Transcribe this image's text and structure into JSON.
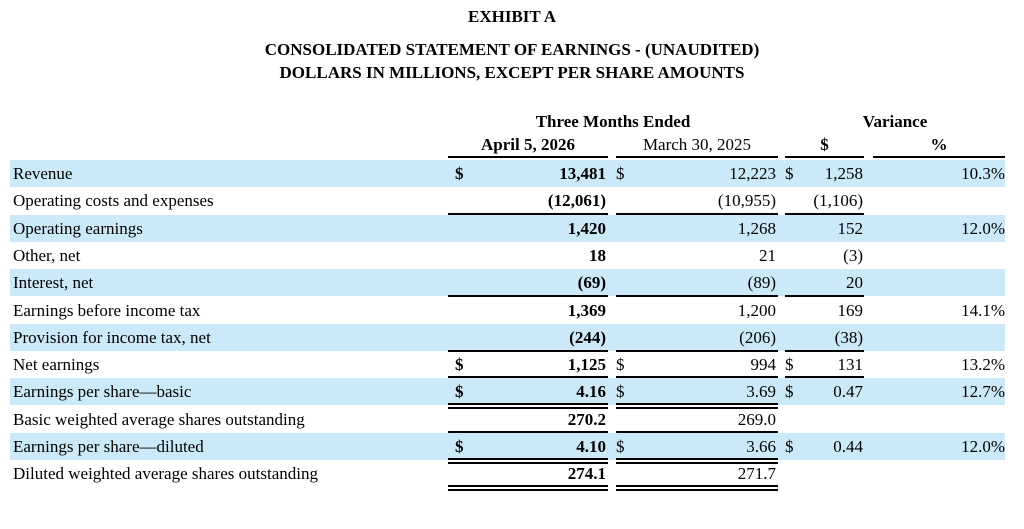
{
  "titles": {
    "exhibit": "EXHIBIT A",
    "statement": "CONSOLIDATED STATEMENT OF EARNINGS - (UNAUDITED)",
    "units": "DOLLARS IN MILLIONS, EXCEPT PER SHARE AMOUNTS"
  },
  "header": {
    "period_group": "Three Months Ended",
    "variance_group": "Variance",
    "col_current": "April 5, 2026",
    "col_prior": "March 30, 2025",
    "col_var_dollar": "$",
    "col_var_pct": "%"
  },
  "colors": {
    "shade": "#cce9f9"
  },
  "rows": [
    {
      "label": "Revenue",
      "cur_sym": "$",
      "current": "13,481",
      "pri_sym": "$",
      "prior": "12,223",
      "var_sym": "$",
      "var": "1,258",
      "pct": "10.3%",
      "rule": "",
      "var_rule": ""
    },
    {
      "label": "Operating costs and expenses",
      "cur_sym": "",
      "current": "(12,061)",
      "pri_sym": "",
      "prior": "(10,955)",
      "var_sym": "",
      "var": "(1,106)",
      "pct": "",
      "rule": "single",
      "var_rule": "single"
    },
    {
      "label": "Operating earnings",
      "cur_sym": "",
      "current": "1,420",
      "pri_sym": "",
      "prior": "1,268",
      "var_sym": "",
      "var": "152",
      "pct": "12.0%",
      "rule": "",
      "var_rule": ""
    },
    {
      "label": "Other, net",
      "cur_sym": "",
      "current": "18",
      "pri_sym": "",
      "prior": "21",
      "var_sym": "",
      "var": "(3)",
      "pct": "",
      "rule": "",
      "var_rule": ""
    },
    {
      "label": "Interest, net",
      "cur_sym": "",
      "current": "(69)",
      "pri_sym": "",
      "prior": "(89)",
      "var_sym": "",
      "var": "20",
      "pct": "",
      "rule": "single",
      "var_rule": "single"
    },
    {
      "label": "Earnings before income tax",
      "cur_sym": "",
      "current": "1,369",
      "pri_sym": "",
      "prior": "1,200",
      "var_sym": "",
      "var": "169",
      "pct": "14.1%",
      "rule": "",
      "var_rule": ""
    },
    {
      "label": "Provision for income tax, net",
      "cur_sym": "",
      "current": "(244)",
      "pri_sym": "",
      "prior": "(206)",
      "var_sym": "",
      "var": "(38)",
      "pct": "",
      "rule": "single",
      "var_rule": "single"
    },
    {
      "label": "Net earnings",
      "cur_sym": "$",
      "current": "1,125",
      "pri_sym": "$",
      "prior": "994",
      "var_sym": "$",
      "var": "131",
      "pct": "13.2%",
      "rule": "double",
      "var_rule": "double"
    },
    {
      "label": "Earnings per share—basic",
      "cur_sym": "$",
      "current": "4.16",
      "pri_sym": "$",
      "prior": "3.69",
      "var_sym": "$",
      "var": "0.47",
      "pct": "12.7%",
      "rule": "double",
      "var_rule": ""
    },
    {
      "label": "Basic weighted average shares outstanding",
      "cur_sym": "",
      "current": "270.2",
      "pri_sym": "",
      "prior": "269.0",
      "var_sym": "",
      "var": "",
      "pct": "",
      "rule": "double",
      "var_rule": ""
    },
    {
      "label": "Earnings per share—diluted",
      "cur_sym": "$",
      "current": "4.10",
      "pri_sym": "$",
      "prior": "3.66",
      "var_sym": "$",
      "var": "0.44",
      "pct": "12.0%",
      "rule": "double",
      "var_rule": ""
    },
    {
      "label": "Diluted weighted average shares outstanding",
      "cur_sym": "",
      "current": "274.1",
      "pri_sym": "",
      "prior": "271.7",
      "var_sym": "",
      "var": "",
      "pct": "",
      "rule": "double",
      "var_rule": ""
    }
  ]
}
